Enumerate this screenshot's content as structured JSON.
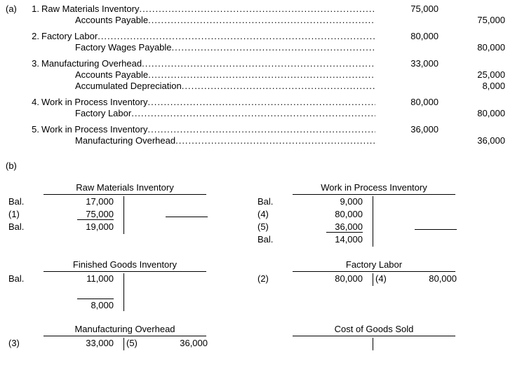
{
  "partA": {
    "label": "(a)",
    "entries": [
      {
        "num": "1.",
        "lines": [
          {
            "acct": "Raw Materials Inventory",
            "debit": "75,000",
            "credit": "",
            "indent": false
          },
          {
            "acct": "Accounts Payable",
            "debit": "",
            "credit": "75,000",
            "indent": true
          }
        ]
      },
      {
        "num": "2.",
        "lines": [
          {
            "acct": "Factory Labor",
            "debit": "80,000",
            "credit": "",
            "indent": false
          },
          {
            "acct": "Factory Wages Payable",
            "debit": "",
            "credit": "80,000",
            "indent": true
          }
        ]
      },
      {
        "num": "3.",
        "lines": [
          {
            "acct": "Manufacturing Overhead",
            "debit": "33,000",
            "credit": "",
            "indent": false
          },
          {
            "acct": "Accounts Payable",
            "debit": "",
            "credit": "25,000",
            "indent": true
          },
          {
            "acct": "Accumulated Depreciation",
            "debit": "",
            "credit": "8,000",
            "indent": true
          }
        ]
      },
      {
        "num": "4.",
        "lines": [
          {
            "acct": "Work in Process Inventory",
            "debit": "80,000",
            "credit": "",
            "indent": false
          },
          {
            "acct": "Factory Labor",
            "debit": "",
            "credit": "80,000",
            "indent": true
          }
        ]
      },
      {
        "num": "5.",
        "lines": [
          {
            "acct": "Work in Process Inventory",
            "debit": "36,000",
            "credit": "",
            "indent": false
          },
          {
            "acct": "Manufacturing Overhead",
            "debit": "",
            "credit": "36,000",
            "indent": true
          }
        ]
      }
    ]
  },
  "partB": {
    "label": "(b)",
    "accounts": {
      "rmi": {
        "title": "Raw Materials Inventory",
        "rows": [
          {
            "lab": "Bal.",
            "lval": "17,000",
            "rlab": "",
            "rval": "",
            "u": false
          },
          {
            "lab": "(1)",
            "lval": "75,000",
            "rlab": "",
            "rval": "",
            "u": true,
            "rblank": true
          },
          {
            "lab": "Bal.",
            "lval": "19,000",
            "rlab": "",
            "rval": "",
            "u": false
          }
        ]
      },
      "wip": {
        "title": "Work in Process Inventory",
        "rows": [
          {
            "lab": "Bal.",
            "lval": "9,000",
            "rlab": "",
            "rval": "",
            "u": false
          },
          {
            "lab": "(4)",
            "lval": "80,000",
            "rlab": "",
            "rval": "",
            "u": false
          },
          {
            "lab": "(5)",
            "lval": "36,000",
            "rlab": "",
            "rval": "",
            "u": true,
            "rblank": true
          },
          {
            "lab": "Bal.",
            "lval": "14,000",
            "rlab": "",
            "rval": "",
            "u": false
          }
        ]
      },
      "fgi": {
        "title": "Finished Goods Inventory",
        "rows": [
          {
            "lab": "Bal.",
            "lval": "11,000",
            "rlab": "",
            "rval": "",
            "u": false
          },
          {
            "lab": "",
            "lval": "",
            "rlab": "",
            "rval": "",
            "u": false
          },
          {
            "lab": "",
            "lval": "8,000",
            "rlab": "",
            "rval": "",
            "u": false,
            "baltop": true
          }
        ]
      },
      "fl": {
        "title": "Factory Labor",
        "rows": [
          {
            "lab": "(2)",
            "lval": "80,000",
            "rlab": "(4)",
            "rval": "80,000",
            "u": false
          }
        ]
      },
      "moh": {
        "title": "Manufacturing Overhead",
        "rows": [
          {
            "lab": "(3)",
            "lval": "33,000",
            "rlab": "(5)",
            "rval": "36,000",
            "u": false
          }
        ]
      },
      "cogs": {
        "title": "Cost of Goods Sold",
        "rows": [
          {
            "lab": "",
            "lval": "",
            "rlab": "",
            "rval": "",
            "u": false
          }
        ]
      }
    }
  }
}
